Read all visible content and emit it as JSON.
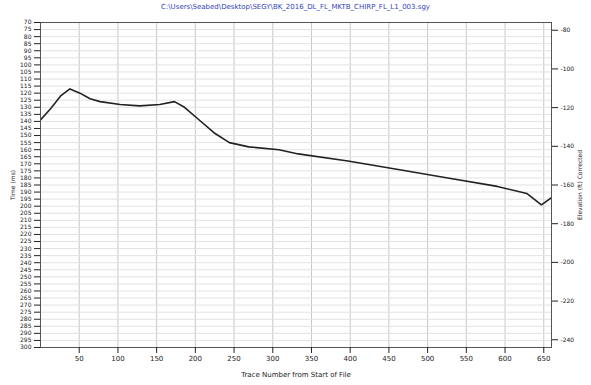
{
  "chart_data": {
    "type": "line",
    "title": "C:\\Users\\Seabed\\Desktop\\SEGY\\BK_2016_DL_FL_MKTB_CHIRP_FL_L1_003.sgy",
    "xlabel": "Trace Number from Start of File",
    "ylabel": "Time (ms)",
    "y2label": "Elevation (ft) Corrected",
    "x": [
      0,
      13,
      26,
      38,
      51,
      64,
      77,
      103,
      128,
      154,
      173,
      186,
      205,
      224,
      244,
      269,
      308,
      333,
      397,
      462,
      526,
      590,
      628,
      647,
      660
    ],
    "series": [
      {
        "color": "#222222",
        "values": [
          139,
          131,
          122,
          117,
          120,
          124,
          126,
          128,
          129,
          128,
          126,
          130,
          139,
          148,
          155,
          158,
          160,
          163,
          168,
          174,
          180,
          186,
          191,
          199,
          194
        ]
      }
    ],
    "xlim": [
      0,
      660
    ],
    "xticks": [
      50,
      100,
      150,
      200,
      250,
      300,
      350,
      400,
      450,
      500,
      550,
      600,
      650
    ],
    "ylim": [
      70,
      300
    ],
    "yticks": [
      70,
      75,
      80,
      85,
      90,
      95,
      100,
      105,
      110,
      115,
      120,
      125,
      130,
      135,
      140,
      145,
      150,
      155,
      160,
      165,
      170,
      175,
      180,
      185,
      190,
      195,
      200,
      205,
      210,
      215,
      220,
      225,
      230,
      235,
      240,
      245,
      250,
      255,
      260,
      265,
      270,
      275,
      280,
      285,
      290,
      295,
      300
    ],
    "y2lim": [
      -76,
      -244
    ],
    "y2ticks": [
      -80,
      -100,
      -120,
      -140,
      -160,
      -180,
      -200,
      -220,
      -240
    ],
    "grid": true
  }
}
